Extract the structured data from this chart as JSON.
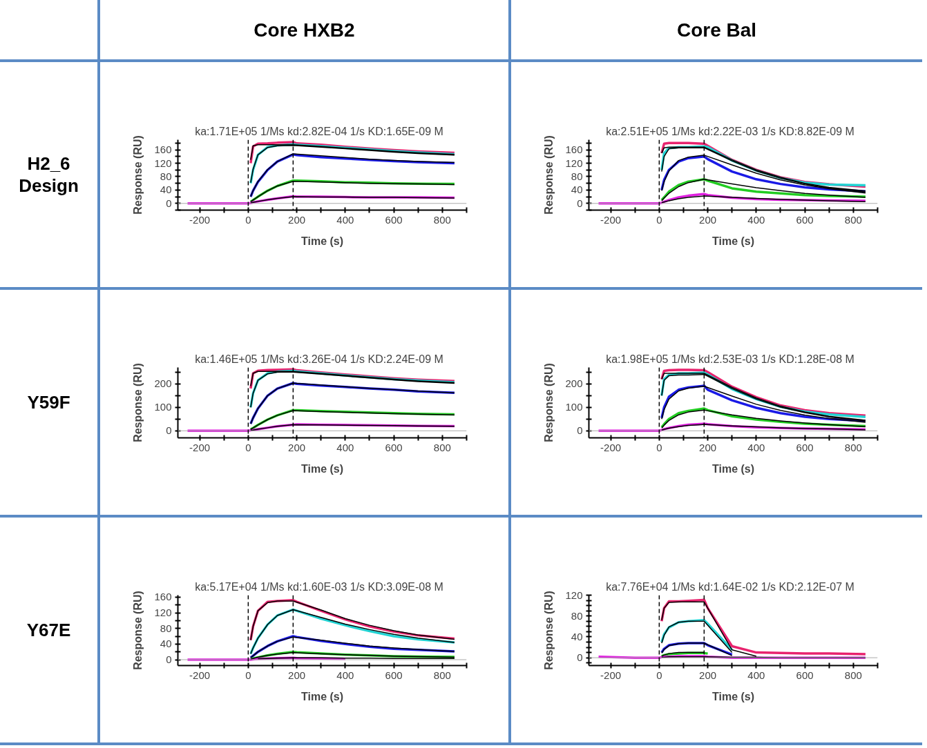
{
  "chart_data": [
    {
      "type": "line",
      "title": "ka:1.71E+05 1/Ms  kd:2.82E-04 1/s  KD:1.65E-09 M",
      "xlabel": "Time (s)",
      "ylabel": "Response (RU)",
      "annotations": [
        "Core HXB2",
        "H2_6 Design"
      ],
      "x": [
        -250,
        -100,
        0,
        10,
        20,
        40,
        80,
        120,
        185,
        200,
        300,
        400,
        500,
        600,
        700,
        850
      ],
      "xlim": [
        -290,
        900
      ],
      "xticks": [
        -200,
        {
          "value": -100,
          "label": null
        },
        0,
        {
          "value": 100,
          "label": null
        },
        200,
        {
          "value": 300,
          "label": null
        },
        400,
        {
          "value": 500,
          "label": null
        },
        600,
        {
          "value": 700,
          "label": null
        },
        800,
        {
          "value": 900,
          "label": null
        }
      ],
      "ylim": [
        -20,
        190
      ],
      "yticks": [
        {
          "value": -20,
          "label": null
        },
        0,
        {
          "value": 20,
          "label": null
        },
        40,
        {
          "value": 60,
          "label": null
        },
        80,
        {
          "value": 100,
          "label": null
        },
        120,
        {
          "value": 140,
          "label": null
        },
        160,
        {
          "value": 180,
          "label": null
        }
      ],
      "grid": false,
      "marker": "none",
      "ref_lines": [
        {
          "axis": "y",
          "value": 0,
          "color": "#aaaaaa",
          "line_style": "solid"
        },
        {
          "axis": "x",
          "value": 0,
          "color": "#000000",
          "line_style": "dashed"
        },
        {
          "axis": "x",
          "value": 185,
          "color": "#000000",
          "line_style": "dashed"
        }
      ],
      "series": [
        {
          "color": "#e8236e",
          "values": [
            null,
            null,
            null,
            120,
            170,
            178,
            179,
            181,
            183,
            179,
            175,
            169,
            164,
            159,
            155,
            151
          ]
        },
        {
          "color": "#22d3d3",
          "values": [
            null,
            null,
            null,
            60,
            100,
            145,
            168,
            173,
            176,
            175,
            171,
            166,
            161,
            156,
            152,
            147
          ]
        },
        {
          "color": "#1a1ae6",
          "values": [
            null,
            null,
            null,
            20,
            38,
            64,
            100,
            125,
            146,
            144,
            138,
            134,
            130,
            126,
            123,
            120
          ]
        },
        {
          "color": "#22cc22",
          "values": [
            null,
            null,
            null,
            5,
            10,
            20,
            38,
            52,
            68,
            68,
            66,
            63,
            62,
            60,
            59,
            58
          ]
        },
        {
          "color": "#e020e0",
          "values": [
            0,
            0,
            0,
            1,
            3,
            6,
            11,
            15,
            21,
            20,
            20,
            19,
            18,
            18,
            18,
            17
          ]
        },
        {
          "color": "#000000",
          "x": [
            10,
            20,
            40,
            80,
            120,
            185,
            300,
            400,
            500,
            600,
            700,
            850
          ],
          "values": [
            130,
            172,
            175,
            175,
            175,
            175,
            170,
            165,
            160,
            155,
            151,
            146
          ]
        },
        {
          "color": "#000000",
          "x": [
            10,
            20,
            40,
            80,
            120,
            185,
            300,
            400,
            500,
            600,
            700,
            850
          ],
          "values": [
            62,
            102,
            145,
            167,
            172,
            173,
            168,
            163,
            158,
            153,
            149,
            144
          ]
        },
        {
          "color": "#000000",
          "x": [
            10,
            20,
            40,
            80,
            120,
            185,
            300,
            400,
            500,
            600,
            700,
            850
          ],
          "values": [
            20,
            38,
            65,
            101,
            125,
            148,
            142,
            137,
            132,
            128,
            125,
            122
          ]
        },
        {
          "color": "#000000",
          "x": [
            10,
            20,
            40,
            80,
            120,
            185,
            300,
            400,
            500,
            600,
            700,
            850
          ],
          "values": [
            5,
            10,
            20,
            38,
            52,
            66,
            64,
            62,
            60,
            59,
            58,
            56
          ]
        },
        {
          "color": "#000000",
          "x": [
            10,
            20,
            40,
            80,
            120,
            185,
            300,
            400,
            500,
            600,
            700,
            850
          ],
          "values": [
            1,
            3,
            6,
            11,
            15,
            20,
            19,
            19,
            18,
            18,
            17,
            16
          ]
        }
      ]
    },
    {
      "type": "line",
      "title": "ka:2.51E+05 1/Ms  kd:2.22E-03 1/s  KD:8.82E-09 M",
      "xlabel": "Time (s)",
      "ylabel": "Response (RU)",
      "annotations": [
        "Core Bal"
      ],
      "x": [
        -250,
        -100,
        0,
        10,
        20,
        40,
        80,
        120,
        185,
        200,
        300,
        400,
        500,
        600,
        700,
        850
      ],
      "xlim": [
        -290,
        900
      ],
      "xticks": [
        -200,
        {
          "value": -100,
          "label": null
        },
        0,
        {
          "value": 100,
          "label": null
        },
        200,
        {
          "value": 300,
          "label": null
        },
        400,
        {
          "value": 500,
          "label": null
        },
        600,
        {
          "value": 700,
          "label": null
        },
        800,
        {
          "value": 900,
          "label": null
        }
      ],
      "ylim": [
        -20,
        190
      ],
      "yticks": [
        {
          "value": -20,
          "label": null
        },
        0,
        {
          "value": 20,
          "label": null
        },
        40,
        {
          "value": 60,
          "label": null
        },
        80,
        {
          "value": 100,
          "label": null
        },
        120,
        {
          "value": 140,
          "label": null
        },
        160,
        {
          "value": 180,
          "label": null
        }
      ],
      "grid": false,
      "marker": "none",
      "ref_lines": [
        {
          "axis": "y",
          "value": 0,
          "color": "#aaaaaa",
          "line_style": "solid"
        },
        {
          "axis": "x",
          "value": 0,
          "color": "#000000",
          "line_style": "dashed"
        },
        {
          "axis": "x",
          "value": 185,
          "color": "#000000",
          "line_style": "dashed"
        }
      ],
      "series": [
        {
          "color": "#e8236e",
          "values": [
            null,
            null,
            null,
            150,
            178,
            180,
            180,
            180,
            178,
            172,
            130,
            100,
            78,
            64,
            57,
            50
          ]
        },
        {
          "color": "#22d3d3",
          "values": [
            null,
            null,
            null,
            100,
            150,
            165,
            168,
            168,
            170,
            168,
            128,
            98,
            76,
            62,
            56,
            54
          ]
        },
        {
          "color": "#1a1ae6",
          "values": [
            null,
            null,
            null,
            40,
            70,
            100,
            125,
            135,
            140,
            132,
            95,
            72,
            58,
            48,
            42,
            36
          ]
        },
        {
          "color": "#22cc22",
          "values": [
            null,
            null,
            null,
            10,
            18,
            35,
            55,
            65,
            72,
            68,
            45,
            35,
            30,
            25,
            22,
            20
          ]
        },
        {
          "color": "#e020e0",
          "values": [
            0,
            0,
            0,
            2,
            5,
            10,
            18,
            23,
            28,
            25,
            17,
            13,
            11,
            10,
            9,
            8
          ]
        },
        {
          "color": "#000000",
          "x": [
            10,
            20,
            40,
            80,
            120,
            185,
            300,
            400,
            500,
            600,
            700,
            850
          ],
          "values": [
            150,
            166,
            168,
            168,
            168,
            168,
            130,
            100,
            78,
            60,
            48,
            37
          ]
        },
        {
          "color": "#000000",
          "x": [
            10,
            20,
            40,
            80,
            120,
            185,
            300,
            400,
            500,
            600,
            700,
            850
          ],
          "values": [
            95,
            140,
            163,
            166,
            166,
            166,
            127,
            97,
            75,
            58,
            46,
            34
          ]
        },
        {
          "color": "#000000",
          "x": [
            10,
            20,
            40,
            80,
            120,
            185,
            300,
            400,
            500,
            600,
            700,
            850
          ],
          "values": [
            38,
            65,
            97,
            128,
            138,
            144,
            115,
            90,
            70,
            55,
            44,
            31
          ]
        },
        {
          "color": "#000000",
          "x": [
            10,
            20,
            40,
            80,
            120,
            185,
            300,
            400,
            500,
            600,
            700,
            850
          ],
          "values": [
            8,
            16,
            30,
            50,
            62,
            72,
            58,
            47,
            38,
            30,
            25,
            18
          ]
        },
        {
          "color": "#000000",
          "x": [
            10,
            20,
            40,
            80,
            120,
            185,
            300,
            400,
            500,
            600,
            700,
            850
          ],
          "values": [
            2,
            4,
            8,
            14,
            18,
            22,
            18,
            15,
            12,
            10,
            8,
            5
          ]
        }
      ]
    },
    {
      "type": "line",
      "title": "ka:1.46E+05 1/Ms  kd:3.26E-04 1/s  KD:2.24E-09 M",
      "xlabel": "Time (s)",
      "ylabel": "Response (RU)",
      "annotations": [
        "Y59F"
      ],
      "x": [
        -250,
        -100,
        0,
        10,
        20,
        40,
        80,
        120,
        185,
        200,
        300,
        400,
        500,
        600,
        700,
        850
      ],
      "xlim": [
        -290,
        900
      ],
      "xticks": [
        -200,
        {
          "value": -100,
          "label": null
        },
        0,
        {
          "value": 100,
          "label": null
        },
        200,
        {
          "value": 300,
          "label": null
        },
        400,
        {
          "value": 500,
          "label": null
        },
        600,
        {
          "value": 700,
          "label": null
        },
        800,
        {
          "value": 900,
          "label": null
        }
      ],
      "ylim": [
        -30,
        270
      ],
      "yticks": [
        0,
        {
          "value": 50,
          "label": null
        },
        100,
        {
          "value": 150,
          "label": null
        },
        200,
        {
          "value": 250,
          "label": null
        }
      ],
      "grid": false,
      "marker": "none",
      "ref_lines": [
        {
          "axis": "y",
          "value": 0,
          "color": "#aaaaaa",
          "line_style": "solid"
        },
        {
          "axis": "x",
          "value": 0,
          "color": "#000000",
          "line_style": "dashed"
        },
        {
          "axis": "x",
          "value": 185,
          "color": "#000000",
          "line_style": "dashed"
        }
      ],
      "series": [
        {
          "color": "#e8236e",
          "values": [
            null,
            null,
            null,
            180,
            245,
            256,
            259,
            260,
            262,
            258,
            249,
            240,
            232,
            224,
            218,
            212
          ]
        },
        {
          "color": "#22d3d3",
          "values": [
            null,
            null,
            null,
            100,
            160,
            215,
            245,
            252,
            255,
            253,
            245,
            236,
            228,
            220,
            214,
            207
          ]
        },
        {
          "color": "#1a1ae6",
          "values": [
            null,
            null,
            null,
            30,
            55,
            95,
            150,
            180,
            203,
            200,
            193,
            187,
            180,
            175,
            168,
            162
          ]
        },
        {
          "color": "#22cc22",
          "values": [
            null,
            null,
            null,
            6,
            12,
            25,
            48,
            66,
            88,
            88,
            84,
            81,
            78,
            75,
            72,
            70
          ]
        },
        {
          "color": "#e020e0",
          "values": [
            0,
            0,
            0,
            2,
            3,
            7,
            13,
            19,
            26,
            27,
            26,
            25,
            24,
            22,
            21,
            20
          ]
        },
        {
          "color": "#000000",
          "x": [
            10,
            20,
            40,
            80,
            120,
            185,
            300,
            400,
            500,
            600,
            700,
            850
          ],
          "values": [
            190,
            245,
            253,
            253,
            253,
            253,
            244,
            236,
            228,
            220,
            213,
            205
          ]
        },
        {
          "color": "#000000",
          "x": [
            10,
            20,
            40,
            80,
            120,
            185,
            300,
            400,
            500,
            600,
            700,
            850
          ],
          "values": [
            100,
            160,
            215,
            243,
            250,
            250,
            241,
            233,
            225,
            217,
            210,
            202
          ]
        },
        {
          "color": "#000000",
          "x": [
            10,
            20,
            40,
            80,
            120,
            185,
            300,
            400,
            500,
            600,
            700,
            850
          ],
          "values": [
            30,
            55,
            95,
            150,
            180,
            203,
            195,
            188,
            181,
            175,
            169,
            162
          ]
        },
        {
          "color": "#000000",
          "x": [
            10,
            20,
            40,
            80,
            120,
            185,
            300,
            400,
            500,
            600,
            700,
            850
          ],
          "values": [
            6,
            12,
            25,
            48,
            66,
            86,
            82,
            79,
            76,
            73,
            71,
            68
          ]
        },
        {
          "color": "#000000",
          "x": [
            10,
            20,
            40,
            80,
            120,
            185,
            300,
            400,
            500,
            600,
            700,
            850
          ],
          "values": [
            2,
            3,
            7,
            13,
            19,
            26,
            25,
            24,
            23,
            22,
            21,
            19
          ]
        }
      ]
    },
    {
      "type": "line",
      "title": "ka:1.98E+05 1/Ms  kd:2.53E-03 1/s  KD:1.28E-08 M",
      "xlabel": "Time (s)",
      "ylabel": "Response (RU)",
      "x": [
        -250,
        -100,
        0,
        10,
        20,
        40,
        80,
        120,
        185,
        200,
        300,
        400,
        500,
        600,
        700,
        850
      ],
      "xlim": [
        -290,
        900
      ],
      "xticks": [
        -200,
        {
          "value": -100,
          "label": null
        },
        0,
        {
          "value": 100,
          "label": null
        },
        200,
        {
          "value": 300,
          "label": null
        },
        400,
        {
          "value": 500,
          "label": null
        },
        600,
        {
          "value": 700,
          "label": null
        },
        800,
        {
          "value": 900,
          "label": null
        }
      ],
      "ylim": [
        -30,
        270
      ],
      "yticks": [
        0,
        {
          "value": 50,
          "label": null
        },
        100,
        {
          "value": 150,
          "label": null
        },
        200,
        {
          "value": 250,
          "label": null
        }
      ],
      "grid": false,
      "marker": "none",
      "ref_lines": [
        {
          "axis": "y",
          "value": 0,
          "color": "#aaaaaa",
          "line_style": "solid"
        },
        {
          "axis": "x",
          "value": 0,
          "color": "#000000",
          "line_style": "dashed"
        },
        {
          "axis": "x",
          "value": 185,
          "color": "#000000",
          "line_style": "dashed"
        }
      ],
      "series": [
        {
          "color": "#e8236e",
          "values": [
            null,
            null,
            null,
            220,
            255,
            258,
            260,
            260,
            258,
            250,
            188,
            143,
            108,
            88,
            75,
            65
          ]
        },
        {
          "color": "#22d3d3",
          "values": [
            null,
            null,
            null,
            150,
            220,
            238,
            245,
            245,
            248,
            240,
            178,
            135,
            102,
            82,
            70,
            59
          ]
        },
        {
          "color": "#1a1ae6",
          "values": [
            null,
            null,
            null,
            55,
            100,
            145,
            175,
            185,
            192,
            175,
            130,
            98,
            75,
            60,
            50,
            42
          ]
        },
        {
          "color": "#22cc22",
          "values": [
            null,
            null,
            null,
            15,
            28,
            50,
            75,
            85,
            95,
            88,
            62,
            48,
            38,
            30,
            26,
            20
          ]
        },
        {
          "color": "#e020e0",
          "values": [
            0,
            0,
            0,
            3,
            7,
            12,
            20,
            26,
            30,
            28,
            20,
            15,
            12,
            10,
            8,
            6
          ]
        },
        {
          "color": "#000000",
          "x": [
            10,
            20,
            40,
            80,
            120,
            185,
            300,
            400,
            500,
            600,
            700,
            850
          ],
          "values": [
            220,
            245,
            245,
            245,
            245,
            245,
            185,
            140,
            105,
            80,
            62,
            45
          ]
        },
        {
          "color": "#000000",
          "x": [
            10,
            20,
            40,
            80,
            120,
            185,
            300,
            400,
            500,
            600,
            700,
            850
          ],
          "values": [
            150,
            215,
            235,
            238,
            238,
            240,
            180,
            135,
            101,
            77,
            59,
            41
          ]
        },
        {
          "color": "#000000",
          "x": [
            10,
            20,
            40,
            80,
            120,
            185,
            300,
            400,
            500,
            600,
            700,
            850
          ],
          "values": [
            50,
            90,
            135,
            170,
            182,
            190,
            148,
            113,
            87,
            67,
            52,
            36
          ]
        },
        {
          "color": "#000000",
          "x": [
            10,
            20,
            40,
            80,
            120,
            185,
            300,
            400,
            500,
            600,
            700,
            850
          ],
          "values": [
            12,
            24,
            44,
            68,
            80,
            88,
            68,
            53,
            42,
            33,
            26,
            18
          ]
        },
        {
          "color": "#000000",
          "x": [
            10,
            20,
            40,
            80,
            120,
            185,
            300,
            400,
            500,
            600,
            700,
            850
          ],
          "values": [
            3,
            6,
            11,
            18,
            23,
            27,
            21,
            17,
            13,
            10,
            8,
            4
          ]
        }
      ]
    },
    {
      "type": "line",
      "title": "ka:5.17E+04 1/Ms  kd:1.60E-03 1/s  KD:3.09E-08 M",
      "xlabel": "Time (s)",
      "ylabel": "Response (RU)",
      "annotations": [
        "Y67E"
      ],
      "x": [
        -250,
        -100,
        0,
        10,
        20,
        40,
        80,
        120,
        185,
        200,
        300,
        400,
        500,
        600,
        700,
        850
      ],
      "xlim": [
        -290,
        900
      ],
      "xticks": [
        -200,
        {
          "value": -100,
          "label": null
        },
        0,
        {
          "value": 100,
          "label": null
        },
        200,
        {
          "value": 300,
          "label": null
        },
        400,
        {
          "value": 500,
          "label": null
        },
        600,
        {
          "value": 700,
          "label": null
        },
        800,
        {
          "value": 900,
          "label": null
        }
      ],
      "ylim": [
        -15,
        165
      ],
      "yticks": [
        0,
        {
          "value": 20,
          "label": null
        },
        40,
        {
          "value": 60,
          "label": null
        },
        80,
        {
          "value": 100,
          "label": null
        },
        120,
        {
          "value": 140,
          "label": null
        },
        160
      ],
      "grid": false,
      "marker": "none",
      "ref_lines": [
        {
          "axis": "y",
          "value": 0,
          "color": "#aaaaaa",
          "line_style": "solid"
        },
        {
          "axis": "x",
          "value": 0,
          "color": "#000000",
          "line_style": "dashed"
        },
        {
          "axis": "x",
          "value": 185,
          "color": "#000000",
          "line_style": "dashed"
        }
      ],
      "series": [
        {
          "color": "#e8236e",
          "values": [
            null,
            null,
            null,
            50,
            85,
            125,
            148,
            150,
            152,
            148,
            125,
            103,
            85,
            72,
            62,
            54
          ]
        },
        {
          "color": "#22d3d3",
          "values": [
            null,
            null,
            null,
            15,
            30,
            55,
            90,
            113,
            128,
            125,
            105,
            88,
            73,
            60,
            52,
            44
          ]
        },
        {
          "color": "#1a1ae6",
          "values": [
            null,
            null,
            null,
            5,
            10,
            20,
            35,
            47,
            60,
            58,
            48,
            40,
            33,
            28,
            25,
            21
          ]
        },
        {
          "color": "#22cc22",
          "values": [
            null,
            null,
            null,
            1,
            3,
            6,
            11,
            15,
            20,
            19,
            16,
            13,
            11,
            9,
            8,
            7
          ]
        },
        {
          "color": "#e020e0",
          "values": [
            0,
            0,
            0,
            0,
            1,
            2,
            3,
            4,
            5,
            4,
            3,
            2,
            null,
            null,
            null,
            null
          ]
        },
        {
          "color": "#000000",
          "x": [
            10,
            20,
            40,
            80,
            120,
            185,
            300,
            400,
            500,
            600,
            700,
            850
          ],
          "values": [
            50,
            85,
            125,
            146,
            150,
            150,
            127,
            105,
            88,
            74,
            63,
            52
          ]
        },
        {
          "color": "#000000",
          "x": [
            10,
            20,
            40,
            80,
            120,
            185,
            300,
            400,
            500,
            600,
            700,
            850
          ],
          "values": [
            15,
            30,
            55,
            90,
            113,
            128,
            108,
            91,
            77,
            65,
            55,
            44
          ]
        },
        {
          "color": "#000000",
          "x": [
            10,
            20,
            40,
            80,
            120,
            185,
            300,
            400,
            500,
            600,
            700,
            850
          ],
          "values": [
            5,
            10,
            20,
            35,
            47,
            58,
            50,
            42,
            35,
            30,
            26,
            21
          ]
        },
        {
          "color": "#000000",
          "x": [
            10,
            20,
            40,
            80,
            120,
            185,
            300,
            400,
            500,
            600,
            700,
            850
          ],
          "values": [
            1,
            3,
            6,
            11,
            14,
            18,
            15,
            13,
            11,
            9,
            8,
            6
          ]
        },
        {
          "color": "#000000",
          "x": [
            40,
            80,
            120,
            185,
            300,
            400,
            500,
            600,
            700,
            850
          ],
          "values": [
            2,
            3,
            4,
            5,
            5,
            4,
            4,
            3,
            3,
            3
          ]
        }
      ]
    },
    {
      "type": "line",
      "title": "ka:7.76E+04 1/Ms  kd:1.64E-02 1/s  KD:2.12E-07 M",
      "xlabel": "Time (s)",
      "ylabel": "Response (RU)",
      "x": [
        -250,
        -100,
        0,
        10,
        20,
        40,
        80,
        120,
        185,
        200,
        300,
        400,
        500,
        600,
        700,
        850
      ],
      "xlim": [
        -290,
        900
      ],
      "xticks": [
        -200,
        {
          "value": -100,
          "label": null
        },
        0,
        {
          "value": 100,
          "label": null
        },
        200,
        {
          "value": 300,
          "label": null
        },
        400,
        {
          "value": 500,
          "label": null
        },
        600,
        {
          "value": 700,
          "label": null
        },
        800,
        {
          "value": 900,
          "label": null
        }
      ],
      "ylim": [
        -15,
        120
      ],
      "yticks": [
        {
          "value": -10,
          "label": null
        },
        0,
        {
          "value": 10,
          "label": null
        },
        {
          "value": 20,
          "label": null
        },
        {
          "value": 30,
          "label": null
        },
        40,
        {
          "value": 50,
          "label": null
        },
        {
          "value": 60,
          "label": null
        },
        {
          "value": 70,
          "label": null
        },
        80,
        {
          "value": 90,
          "label": null
        },
        {
          "value": 100,
          "label": null
        },
        {
          "value": 110,
          "label": null
        },
        120
      ],
      "grid": false,
      "marker": "none",
      "ref_lines": [
        {
          "axis": "y",
          "value": 0,
          "color": "#aaaaaa",
          "line_style": "solid"
        },
        {
          "axis": "x",
          "value": 0,
          "color": "#000000",
          "line_style": "dashed"
        },
        {
          "axis": "x",
          "value": 185,
          "color": "#000000",
          "line_style": "dashed"
        }
      ],
      "series": [
        {
          "color": "#e8236e",
          "values": [
            null,
            null,
            null,
            70,
            95,
            108,
            108,
            109,
            111,
            95,
            22,
            10,
            9,
            8,
            8,
            7
          ]
        },
        {
          "color": "#22d3d3",
          "values": [
            null,
            null,
            null,
            30,
            45,
            58,
            68,
            70,
            72,
            65,
            15,
            null,
            null,
            null,
            null,
            null
          ]
        },
        {
          "color": "#1a1ae6",
          "values": [
            null,
            null,
            null,
            10,
            17,
            24,
            27,
            28,
            28,
            24,
            6,
            null,
            null,
            null,
            null,
            null
          ]
        },
        {
          "color": "#22cc22",
          "values": [
            null,
            null,
            null,
            3,
            5,
            7,
            8,
            9,
            9,
            8,
            null,
            null,
            null,
            null,
            null,
            null
          ]
        },
        {
          "color": "#e020e0",
          "values": [
            2,
            0,
            0,
            1,
            2,
            2,
            3,
            3,
            3,
            2,
            0,
            0,
            0,
            0,
            0,
            0
          ]
        },
        {
          "color": "#000000",
          "x": [
            10,
            20,
            40,
            80,
            120,
            185,
            300,
            400
          ],
          "values": [
            72,
            95,
            106,
            107,
            107,
            107,
            15,
            3
          ]
        },
        {
          "color": "#000000",
          "x": [
            10,
            20,
            40,
            80,
            120,
            185,
            300
          ],
          "values": [
            28,
            43,
            59,
            68,
            70,
            70,
            10
          ]
        },
        {
          "color": "#000000",
          "x": [
            10,
            20,
            40,
            80,
            120,
            185,
            300
          ],
          "values": [
            9,
            16,
            23,
            27,
            28,
            28,
            4
          ]
        },
        {
          "color": "#000000",
          "x": [
            10,
            20,
            40,
            80,
            120,
            185
          ],
          "values": [
            3,
            5,
            8,
            10,
            10,
            10
          ]
        },
        {
          "color": "#000000",
          "x": [
            10,
            20,
            40,
            80,
            120,
            185,
            300,
            400,
            500,
            600,
            700,
            850
          ],
          "values": [
            1,
            1,
            2,
            2,
            2,
            2,
            1,
            1,
            0,
            0,
            0,
            0
          ]
        }
      ]
    }
  ]
}
